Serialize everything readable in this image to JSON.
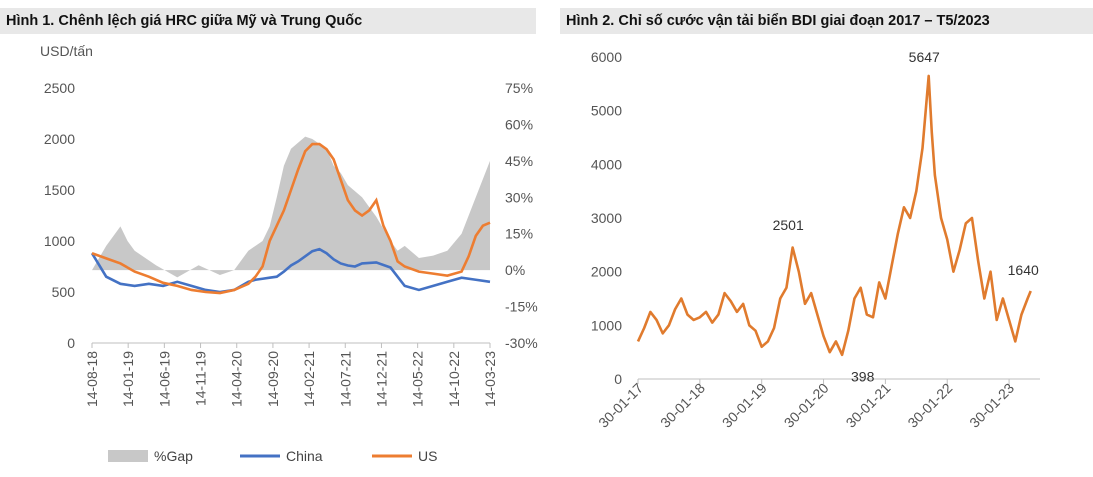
{
  "header1": "Hình 1. Chênh lệch giá HRC giữa Mỹ và Trung Quốc",
  "header2": "Hình 2. Chỉ số cước vận tải biển BDI giai đoạn 2017 – T5/2023",
  "colors": {
    "gap": "#c8c8c8",
    "china": "#4472c4",
    "us": "#ed7d31",
    "bdi": "#e07b2e"
  },
  "chart_data": [
    {
      "type": "line",
      "ylabel": "USD/tấn",
      "ylim": [
        0,
        2500
      ],
      "yticks": [
        "0",
        "500",
        "1000",
        "1500",
        "2000",
        "2500"
      ],
      "y2lim": [
        -0.3,
        0.75
      ],
      "y2ticks": [
        "-30%",
        "-15%",
        "0%",
        "15%",
        "30%",
        "45%",
        "60%",
        "75%"
      ],
      "xticks": [
        "14-08-18",
        "14-01-19",
        "14-06-19",
        "14-11-19",
        "14-04-20",
        "14-09-20",
        "14-02-21",
        "14-07-21",
        "14-12-21",
        "14-05-22",
        "14-10-22",
        "14-03-23"
      ],
      "legend": [
        "%Gap",
        "China",
        "US"
      ],
      "series": [
        {
          "name": "%Gap",
          "axis": "right",
          "type": "area",
          "x": [
            0,
            2,
            4,
            5,
            6,
            9,
            12,
            15,
            18,
            20,
            22,
            24,
            25,
            26,
            27,
            28,
            30,
            31,
            32,
            33,
            34,
            35,
            36,
            38,
            40,
            42,
            43,
            44,
            46,
            48,
            50,
            52,
            54,
            56
          ],
          "values": [
            0,
            0.1,
            0.18,
            0.12,
            0.08,
            0.02,
            -0.03,
            0.02,
            -0.02,
            0.0,
            0.08,
            0.12,
            0.18,
            0.3,
            0.43,
            0.5,
            0.55,
            0.54,
            0.52,
            0.5,
            0.43,
            0.4,
            0.35,
            0.3,
            0.22,
            0.12,
            0.08,
            0.1,
            0.05,
            0.06,
            0.08,
            0.15,
            0.3,
            0.45
          ]
        },
        {
          "name": "China",
          "axis": "left",
          "x": [
            0,
            2,
            4,
            6,
            8,
            10,
            12,
            14,
            16,
            18,
            20,
            22,
            23,
            24,
            25,
            26,
            27,
            28,
            29,
            30,
            31,
            32,
            33,
            34,
            35,
            36,
            37,
            38,
            40,
            42,
            44,
            46,
            48,
            50,
            52,
            54,
            56
          ],
          "values": [
            880,
            650,
            580,
            560,
            580,
            560,
            600,
            560,
            520,
            500,
            520,
            600,
            620,
            630,
            640,
            650,
            700,
            760,
            800,
            850,
            900,
            920,
            880,
            820,
            780,
            760,
            750,
            780,
            790,
            740,
            560,
            520,
            560,
            600,
            640,
            620,
            600
          ]
        },
        {
          "name": "US",
          "axis": "left",
          "x": [
            0,
            2,
            4,
            6,
            8,
            10,
            12,
            14,
            16,
            18,
            20,
            22,
            23,
            24,
            25,
            26,
            27,
            28,
            29,
            30,
            31,
            32,
            33,
            34,
            35,
            36,
            37,
            38,
            39,
            40,
            41,
            42,
            43,
            44,
            46,
            48,
            50,
            52,
            53,
            54,
            55,
            56
          ],
          "values": [
            880,
            830,
            780,
            700,
            650,
            590,
            560,
            520,
            500,
            490,
            520,
            580,
            650,
            750,
            1000,
            1150,
            1300,
            1500,
            1700,
            1880,
            1950,
            1950,
            1900,
            1800,
            1600,
            1400,
            1300,
            1250,
            1300,
            1400,
            1150,
            1000,
            800,
            750,
            700,
            680,
            660,
            700,
            850,
            1050,
            1150,
            1180
          ]
        }
      ]
    },
    {
      "type": "line",
      "ylim": [
        0,
        6000
      ],
      "yticks": [
        "0",
        "1000",
        "2000",
        "3000",
        "4000",
        "5000",
        "6000"
      ],
      "xticks": [
        "30-01-17",
        "30-01-18",
        "30-01-19",
        "30-01-20",
        "30-01-21",
        "30-01-22",
        "30-01-23"
      ],
      "annotations": [
        {
          "text": "2501",
          "x": 2.5,
          "y": 2501
        },
        {
          "text": "5647",
          "x": 4.7,
          "y": 5647
        },
        {
          "text": "398",
          "x": 3.25,
          "y": 398
        },
        {
          "text": "1640",
          "x": 6.3,
          "y": 1640
        }
      ],
      "series": [
        {
          "name": "BDI",
          "x": [
            0,
            0.1,
            0.2,
            0.3,
            0.4,
            0.5,
            0.6,
            0.7,
            0.8,
            0.9,
            1.0,
            1.1,
            1.2,
            1.3,
            1.4,
            1.5,
            1.6,
            1.7,
            1.8,
            1.9,
            2.0,
            2.1,
            2.2,
            2.3,
            2.4,
            2.5,
            2.6,
            2.7,
            2.8,
            2.9,
            3.0,
            3.1,
            3.2,
            3.3,
            3.4,
            3.5,
            3.6,
            3.7,
            3.8,
            3.9,
            4.0,
            4.1,
            4.2,
            4.3,
            4.4,
            4.5,
            4.6,
            4.7,
            4.75,
            4.8,
            4.9,
            5.0,
            5.1,
            5.2,
            5.3,
            5.4,
            5.5,
            5.6,
            5.7,
            5.8,
            5.9,
            6.0,
            6.1,
            6.2,
            6.3,
            6.35
          ],
          "values": [
            700,
            950,
            1250,
            1100,
            850,
            1000,
            1300,
            1500,
            1200,
            1100,
            1150,
            1250,
            1050,
            1200,
            1600,
            1450,
            1250,
            1400,
            1000,
            900,
            600,
            700,
            950,
            1500,
            1700,
            2450,
            2000,
            1400,
            1600,
            1200,
            800,
            500,
            700,
            450,
            900,
            1500,
            1700,
            1200,
            1150,
            1800,
            1500,
            2100,
            2700,
            3200,
            3000,
            3500,
            4300,
            5647,
            4600,
            3800,
            3000,
            2600,
            2000,
            2400,
            2900,
            3000,
            2200,
            1500,
            2000,
            1100,
            1500,
            1100,
            700,
            1200,
            1500,
            1640
          ]
        }
      ]
    }
  ]
}
